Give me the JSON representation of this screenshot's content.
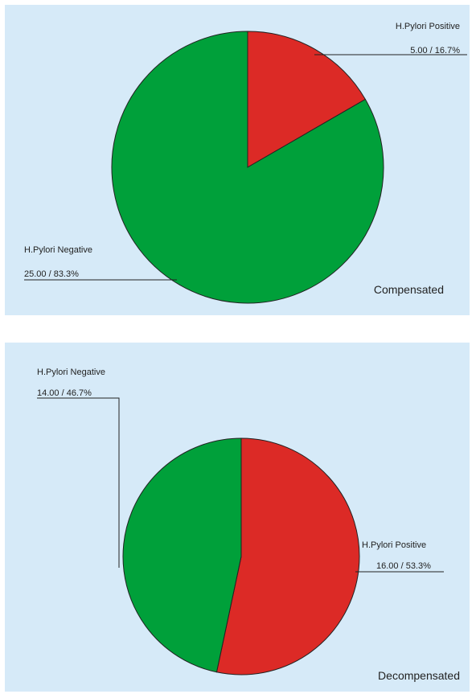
{
  "chart_data": [
    {
      "type": "pie",
      "title": "Compensated",
      "slices": [
        {
          "label": "H.Pylori Positive",
          "value": 5.0,
          "percent": 16.7,
          "value_label": "5.00 / 16.7%",
          "color": "#dc2a26"
        },
        {
          "label": "H.Pylori Negative",
          "value": 25.0,
          "percent": 83.3,
          "value_label": "25.00 / 83.3%",
          "color": "#00a03a"
        }
      ]
    },
    {
      "type": "pie",
      "title": "Decompensated",
      "slices": [
        {
          "label": "H.Pylori Positive",
          "value": 16.0,
          "percent": 53.3,
          "value_label": "16.00 / 53.3%",
          "color": "#dc2a26"
        },
        {
          "label": "H.Pylori Negative",
          "value": 14.0,
          "percent": 46.7,
          "value_label": "14.00 / 46.7%",
          "color": "#00a03a"
        }
      ]
    }
  ],
  "colors": {
    "background": "#d6eaf8",
    "line": "#222222"
  }
}
